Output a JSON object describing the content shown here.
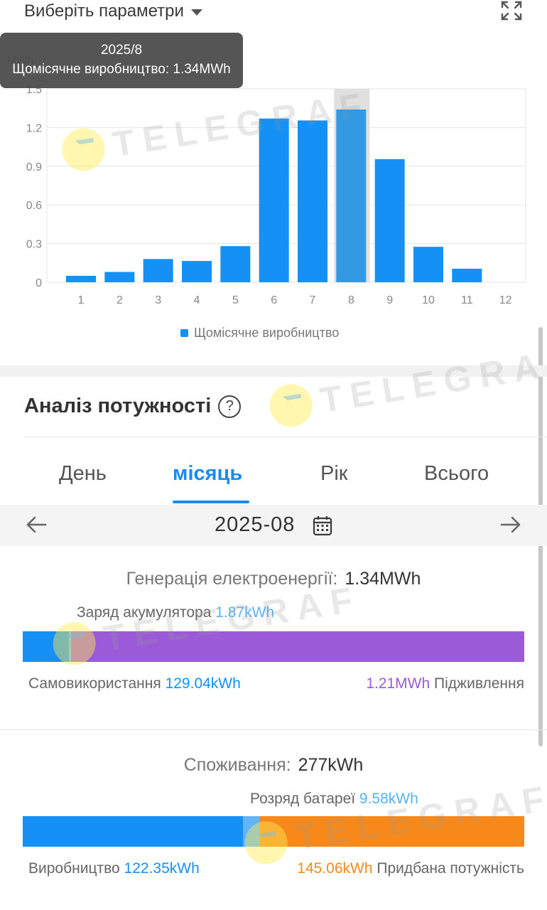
{
  "header": {
    "param_select_label": "Виберіть параметри"
  },
  "tooltip": {
    "date": "2025/8",
    "line": "Щомісячне виробництво: 1.34MWh"
  },
  "chart_data": {
    "type": "bar",
    "ylabel": "MWh",
    "ylim": [
      0,
      1.5
    ],
    "yticks": [
      "0",
      "0.3",
      "0.6",
      "0.9",
      "1.2",
      "1.5"
    ],
    "categories": [
      "1",
      "2",
      "3",
      "4",
      "5",
      "6",
      "7",
      "8",
      "9",
      "10",
      "11",
      "12"
    ],
    "series": [
      {
        "name": "Щомісячне виробництво",
        "values": [
          0.05,
          0.08,
          0.18,
          0.165,
          0.28,
          1.27,
          1.255,
          1.34,
          0.955,
          0.275,
          0.105,
          0
        ],
        "color": "#1590f5"
      }
    ],
    "highlight_index": 7,
    "highlight_color": "#3399e3",
    "grid": true,
    "legend_position": "bottom"
  },
  "section": {
    "title": "Аналіз потужності",
    "help_symbol": "?"
  },
  "tabs": [
    {
      "label": "День",
      "active": false
    },
    {
      "label": "місяць",
      "active": true
    },
    {
      "label": "Рік",
      "active": false
    },
    {
      "label": "Всього",
      "active": false
    }
  ],
  "date_nav": {
    "date": "2025-08"
  },
  "generation": {
    "label": "Генерація електроенергії:",
    "value": "1.34MWh",
    "charge_label": "Заряд акумулятора",
    "charge_value": "1.87kWh",
    "self_use_label": "Самовикористання",
    "self_use_value": "129.04kWh",
    "feed_in_value": "1.21MWh",
    "feed_in_label": "Підживлення"
  },
  "consumption": {
    "label": "Споживання:",
    "value": "277kWh",
    "discharge_label": "Розряд батареї",
    "discharge_value": "9.58kWh",
    "production_label": "Виробництво",
    "production_value": "122.35kWh",
    "purchased_value": "145.06kWh",
    "purchased_label": "Придбана потужність"
  },
  "watermark": {
    "text": "TELEGRAF"
  },
  "colors": {
    "accent": "#1a8cf0",
    "feed_in": "#9b5bd8",
    "purchased": "#f7891b"
  }
}
